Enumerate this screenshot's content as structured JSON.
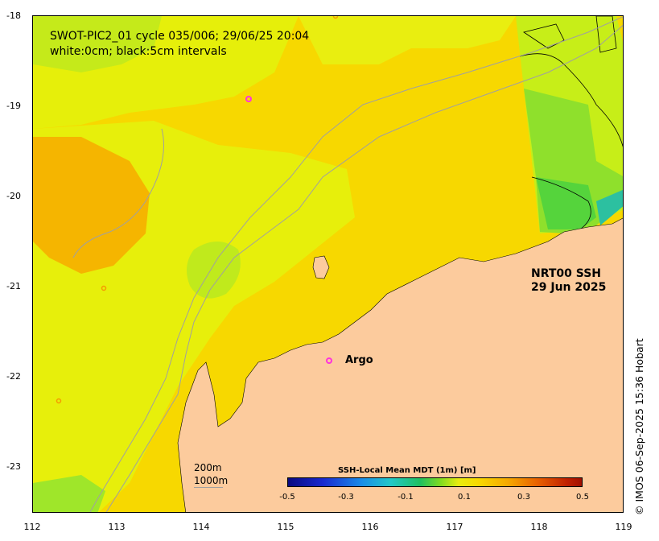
{
  "title": {
    "line1": "SWOT-PIC2_01 cycle 035/006; 29/06/25 20:04",
    "line2": "white:0cm; black:5cm intervals"
  },
  "product": {
    "line1": "NRT00 SSH",
    "line2": "29 Jun 2025"
  },
  "marker_label": "Argo",
  "scale": {
    "line1": "200m",
    "line2": "1000m"
  },
  "credit": "© IMOS 06-Sep-2025 15:36 Hobart",
  "axes": {
    "x_ticks": [
      "112",
      "113",
      "114",
      "115",
      "116",
      "117",
      "118",
      "119"
    ],
    "y_ticks": [
      "-18",
      "-19",
      "-20",
      "-21",
      "-22",
      "-23"
    ]
  },
  "colorbar": {
    "title": "SSH-Local Mean MDT (1m) [m]",
    "ticks": [
      "-0.5",
      "-0.3",
      "-0.1",
      "0.1",
      "0.3",
      "0.5"
    ],
    "range": [
      -0.5,
      0.5
    ]
  },
  "colors": {
    "land": "#fccb9d",
    "ocean_yellow": "#f7da00",
    "ocean_light": "#e8ef10",
    "ocean_orange": "#f5b400",
    "ocean_green": "#b6ea20",
    "swot_green": "#5fd93a",
    "argo_marker": "#ff33dd"
  }
}
